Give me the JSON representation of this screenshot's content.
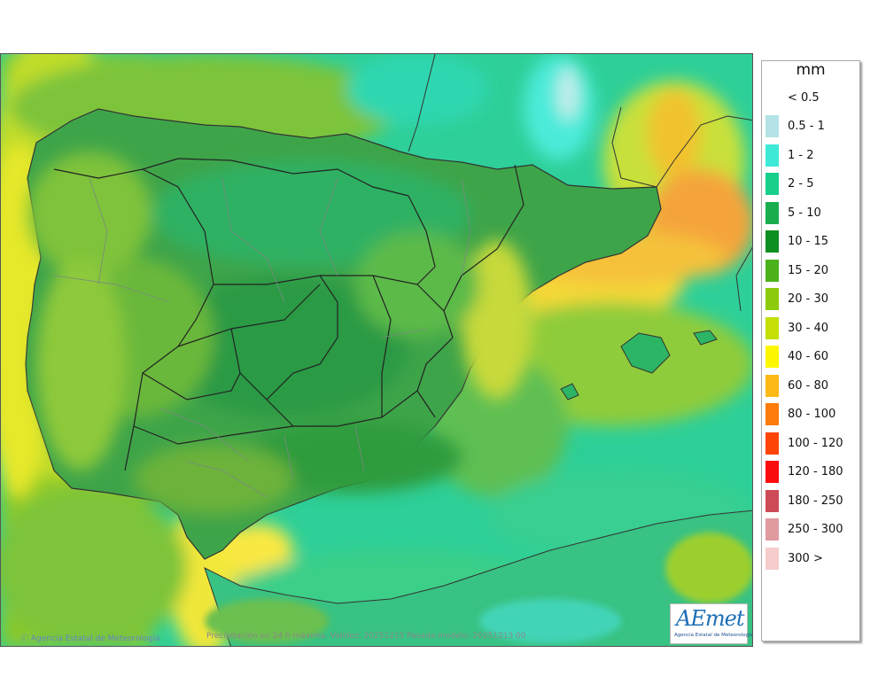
{
  "legend": {
    "unit": "mm",
    "items": [
      {
        "label": "< 0.5",
        "color": ""
      },
      {
        "label": "0.5 - 1",
        "color": "#b3e3e6"
      },
      {
        "label": "1 - 2",
        "color": "#3ee9d6"
      },
      {
        "label": "2 - 5",
        "color": "#18cf8a"
      },
      {
        "label": "5 - 10",
        "color": "#19ad4e"
      },
      {
        "label": "10 - 15",
        "color": "#0d8f22"
      },
      {
        "label": "15 - 20",
        "color": "#4bb21c"
      },
      {
        "label": "20 - 30",
        "color": "#8ccb0e"
      },
      {
        "label": "30 - 40",
        "color": "#c5df07"
      },
      {
        "label": "40 - 60",
        "color": "#fcf700"
      },
      {
        "label": "60 - 80",
        "color": "#fdb915"
      },
      {
        "label": "80 - 100",
        "color": "#fd7c0b"
      },
      {
        "label": "100 - 120",
        "color": "#fe4407"
      },
      {
        "label": "120 - 180",
        "color": "#fb0d0d"
      },
      {
        "label": "180 - 250",
        "color": "#cd4b57"
      },
      {
        "label": "250 - 300",
        "color": "#e09aa0"
      },
      {
        "label": "300 >",
        "color": "#f6cccc"
      }
    ]
  },
  "credits": {
    "agency": "Agencia Estatal de Meteorología",
    "caption": "Precipitación en 24 h máxima. Validez: 20251215 Pasada modelo: 20251213 00"
  },
  "logo": {
    "name": "AEmet",
    "subtitle": "Agencia Estatal de Meteorología"
  },
  "map_colors": {
    "sea": "#27d09f",
    "land": "#2fa24f",
    "mountains": "#1f8a3c",
    "wet": "#9bcf2c",
    "heavy": "#f4d52a",
    "max": "#f79a3b",
    "borders": "#333333"
  }
}
